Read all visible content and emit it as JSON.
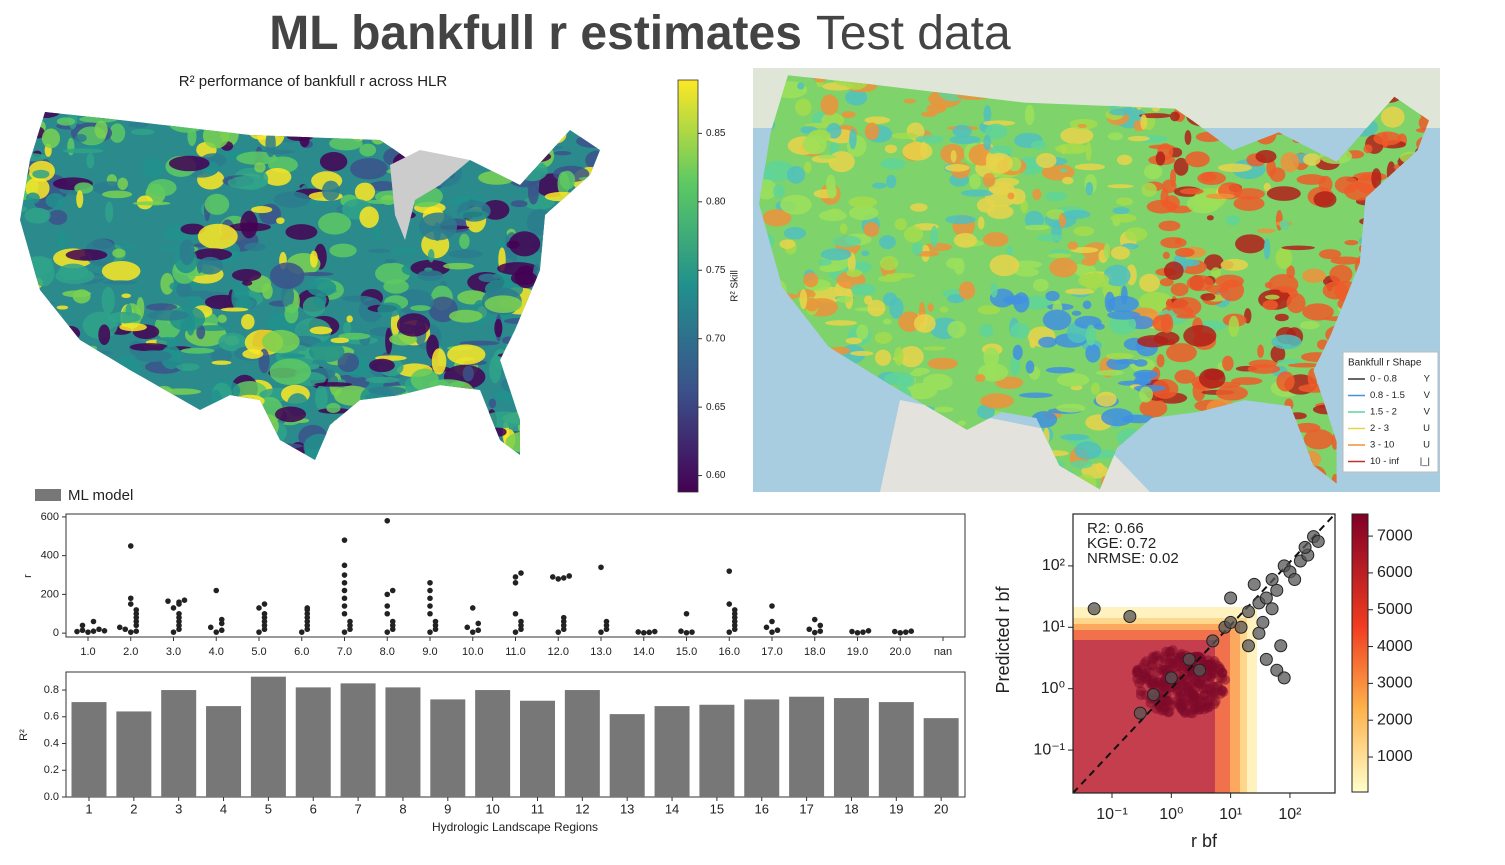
{
  "header": {
    "title": "ML bankfull r estimates",
    "subtitle": "Test data"
  },
  "chart_data": [
    {
      "type": "choropleth",
      "title": "R² performance of bankfull r across HLR",
      "colorbar_label": "R² Skill",
      "clim": [
        0.588,
        0.889
      ],
      "cticks": [
        {
          "value": 0.6,
          "label": "0.60"
        },
        0.65,
        {
          "value": 0.7,
          "label": "0.70"
        },
        0.75,
        {
          "value": 0.8,
          "label": "0.80"
        },
        0.85
      ]
    },
    {
      "type": "map",
      "legend_title": "Bankfull r Shape",
      "legend": [
        {
          "name": "0 - 0.8",
          "symbol": "Y",
          "color": "#333333"
        },
        {
          "name": "0.8 - 1.5",
          "symbol": "V",
          "color": "#4a90d9"
        },
        {
          "name": "1.5 - 2",
          "symbol": "V",
          "color": "#5fd39a"
        },
        {
          "name": "2 - 3",
          "symbol": "U",
          "color": "#e8d44a"
        },
        {
          "name": "3 - 10",
          "symbol": "U",
          "color": "#f0913a"
        },
        {
          "name": "10 - inf",
          "symbol": "|_|",
          "color": "#c0302a"
        }
      ]
    },
    {
      "type": "swarm",
      "legend": "ML model",
      "ylabel": "r",
      "color": "#222222",
      "legend_color": "#777777",
      "categories": [
        "1.0",
        "2.0",
        "3.0",
        "4.0",
        "5.0",
        "6.0",
        "7.0",
        "8.0",
        "9.0",
        "10.0",
        "11.0",
        "12.0",
        "13.0",
        "14.0",
        "15.0",
        "16.0",
        "17.0",
        "18.0",
        "19.0",
        "20.0",
        "nan"
      ],
      "values": [
        [
          5,
          10,
          15,
          20,
          40,
          60,
          8,
          12
        ],
        [
          5,
          10,
          20,
          40,
          60,
          80,
          100,
          120,
          150,
          180,
          450,
          30
        ],
        [
          5,
          20,
          40,
          60,
          80,
          100,
          130,
          150,
          160,
          165,
          170
        ],
        [
          5,
          15,
          30,
          50,
          70,
          220
        ],
        [
          5,
          20,
          40,
          60,
          80,
          100,
          130,
          150
        ],
        [
          5,
          20,
          40,
          60,
          80,
          100,
          120,
          130
        ],
        [
          5,
          20,
          40,
          60,
          100,
          140,
          180,
          220,
          260,
          300,
          350,
          480
        ],
        [
          5,
          20,
          40,
          60,
          100,
          140,
          200,
          220,
          580
        ],
        [
          5,
          20,
          40,
          60,
          100,
          140,
          180,
          220,
          260
        ],
        [
          5,
          15,
          30,
          50,
          130
        ],
        [
          5,
          20,
          40,
          60,
          100,
          260,
          290,
          310
        ],
        [
          5,
          20,
          40,
          60,
          80,
          280,
          285,
          290,
          295
        ],
        [
          5,
          20,
          40,
          60,
          340
        ],
        [
          2,
          4,
          6,
          8
        ],
        [
          2,
          5,
          10,
          100
        ],
        [
          5,
          20,
          40,
          60,
          80,
          100,
          120,
          150,
          320
        ],
        [
          5,
          15,
          30,
          60,
          140
        ],
        [
          3,
          10,
          20,
          40,
          70
        ],
        [
          2,
          5,
          8,
          12
        ],
        [
          2,
          5,
          8,
          10
        ],
        []
      ],
      "ylim": [
        -20,
        615
      ],
      "yticks": [
        0,
        200,
        400,
        600
      ]
    },
    {
      "type": "bar",
      "xlabel": "Hydrologic Landscape Regions",
      "ylabel": "R²",
      "color": "#777777",
      "categories": [
        "1",
        "2",
        "3",
        "4",
        "5",
        "6",
        "7",
        "8",
        "9",
        "10",
        "11",
        "12",
        "13",
        "14",
        "15",
        "16",
        "17",
        "18",
        "19",
        "20"
      ],
      "values": [
        0.71,
        0.64,
        0.8,
        0.68,
        0.9,
        0.82,
        0.85,
        0.82,
        0.73,
        0.8,
        0.72,
        0.8,
        0.62,
        0.68,
        0.69,
        0.73,
        0.75,
        0.74,
        0.71,
        0.59
      ],
      "ylim": [
        0,
        0.935
      ],
      "yticks": [
        {
          "value": 0,
          "label": "0.0"
        },
        0.2,
        0.4,
        0.6,
        0.8
      ]
    },
    {
      "type": "scatter",
      "xlabel": "r bf",
      "ylabel": "Predicted r bf",
      "log": true,
      "color": "#555555",
      "annotations": [
        "R2: 0.66",
        "KGE: 0.72",
        "NRMSE: 0.02"
      ],
      "x": [
        0.3,
        0.5,
        1,
        2,
        3,
        5,
        8,
        10,
        15,
        20,
        30,
        40,
        50,
        60,
        80,
        100,
        150,
        200,
        250,
        300,
        20,
        30,
        40,
        60,
        80,
        0.05,
        0.2,
        10,
        25,
        35,
        50,
        70,
        120,
        180
      ],
      "y": [
        0.4,
        0.8,
        1.5,
        3,
        2,
        6,
        10,
        12,
        10,
        18,
        25,
        30,
        60,
        40,
        100,
        80,
        120,
        150,
        300,
        250,
        5,
        8,
        3,
        2,
        1.5,
        20,
        15,
        30,
        50,
        12,
        20,
        5,
        60,
        200
      ],
      "xlim": [
        0.022,
        575
      ],
      "ylim": [
        0.02,
        700
      ],
      "xticks": [
        {
          "value": 0.1,
          "label": "10⁻¹"
        },
        {
          "value": 1,
          "label": "10⁰"
        },
        {
          "value": 10,
          "label": "10¹"
        },
        {
          "value": 100,
          "label": "10²"
        }
      ],
      "yticks": [
        {
          "value": 0.1,
          "label": "10⁻¹"
        },
        {
          "value": 1,
          "label": "10⁰"
        },
        {
          "value": 10,
          "label": "10¹"
        },
        {
          "value": 100,
          "label": "10²"
        }
      ],
      "clim": [
        50,
        7600
      ],
      "cticks": [
        1000,
        2000,
        3000,
        4000,
        5000,
        6000,
        7000
      ]
    }
  ]
}
